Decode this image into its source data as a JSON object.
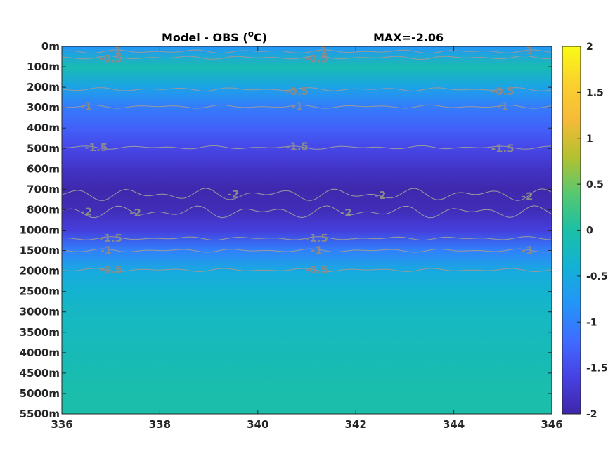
{
  "chart_data": {
    "type": "heatmap",
    "title_left": "Model - OBS (",
    "title_unit_sup": "o",
    "title_unit_after": "C)",
    "title_right": "MAX=-2.06",
    "x_ticks": [
      "336",
      "338",
      "340",
      "342",
      "344",
      "346"
    ],
    "xlim": [
      336,
      346
    ],
    "y_ticks": [
      "0m",
      "100m",
      "200m",
      "300m",
      "400m",
      "500m",
      "600m",
      "700m",
      "800m",
      "1000m",
      "1500m",
      "2000m",
      "2500m",
      "3000m",
      "3500m",
      "4000m",
      "4500m",
      "5000m",
      "5500m"
    ],
    "colorbar": {
      "ticks": [
        "2",
        "1.5",
        "1",
        "0.5",
        "0",
        "-0.5",
        "-1",
        "-1.5",
        "-2"
      ],
      "range": [
        -2,
        2
      ],
      "colormap": [
        "#3e26a8",
        "#4741e3",
        "#3f6cff",
        "#2395f8",
        "#13b1d6",
        "#1bc0a5",
        "#57c86f",
        "#b4c12f",
        "#f6ba39",
        "#fad12e",
        "#f9fb14"
      ]
    },
    "depth_profile": [
      {
        "depth": "0m",
        "value": -0.8
      },
      {
        "depth": "100m",
        "value": -0.1
      },
      {
        "depth": "200m",
        "value": -0.6
      },
      {
        "depth": "300m",
        "value": -1.05
      },
      {
        "depth": "400m",
        "value": -1.3
      },
      {
        "depth": "500m",
        "value": -1.55
      },
      {
        "depth": "600m",
        "value": -1.8
      },
      {
        "depth": "700m",
        "value": -1.97
      },
      {
        "depth": "800m",
        "value": -1.9
      },
      {
        "depth": "1000m",
        "value": -1.65
      },
      {
        "depth": "1500m",
        "value": -1.0
      },
      {
        "depth": "2000m",
        "value": -0.5
      },
      {
        "depth": "2500m",
        "value": -0.35
      },
      {
        "depth": "3000m",
        "value": -0.25
      },
      {
        "depth": "3500m",
        "value": -0.2
      },
      {
        "depth": "4000m",
        "value": -0.15
      },
      {
        "depth": "4500m",
        "value": -0.1
      },
      {
        "depth": "5000m",
        "value": -0.05
      },
      {
        "depth": "5500m",
        "value": -0.05
      }
    ],
    "contour_labels": [
      {
        "text": "-1",
        "x": 337.1,
        "depth_index": 0.2
      },
      {
        "text": "-0.5",
        "x": 337.0,
        "depth_index": 0.6
      },
      {
        "text": "-1",
        "x": 341.3,
        "depth_index": 0.2
      },
      {
        "text": "-0.5",
        "x": 341.2,
        "depth_index": 0.6
      },
      {
        "text": "-1",
        "x": 345.5,
        "depth_index": 0.2
      },
      {
        "text": "-0.5",
        "x": 340.8,
        "depth_index": 2.2
      },
      {
        "text": "-0.5",
        "x": 345.0,
        "depth_index": 2.2
      },
      {
        "text": "-1",
        "x": 336.5,
        "depth_index": 2.95
      },
      {
        "text": "-1",
        "x": 340.8,
        "depth_index": 2.95
      },
      {
        "text": "-1",
        "x": 345.0,
        "depth_index": 2.95
      },
      {
        "text": "-1.5",
        "x": 336.7,
        "depth_index": 4.95
      },
      {
        "text": "-1.5",
        "x": 340.8,
        "depth_index": 4.9
      },
      {
        "text": "-1.5",
        "x": 345.0,
        "depth_index": 5.0
      },
      {
        "text": "-2",
        "x": 339.5,
        "depth_index": 7.25
      },
      {
        "text": "-2",
        "x": 342.5,
        "depth_index": 7.3
      },
      {
        "text": "-2",
        "x": 345.5,
        "depth_index": 7.35
      },
      {
        "text": "-2",
        "x": 336.5,
        "depth_index": 8.1
      },
      {
        "text": "-2",
        "x": 337.5,
        "depth_index": 8.15
      },
      {
        "text": "-2",
        "x": 341.8,
        "depth_index": 8.15
      },
      {
        "text": "-1.5",
        "x": 337.0,
        "depth_index": 9.4
      },
      {
        "text": "-1.5",
        "x": 341.2,
        "depth_index": 9.4
      },
      {
        "text": "-1",
        "x": 336.9,
        "depth_index": 10.0
      },
      {
        "text": "-1",
        "x": 341.2,
        "depth_index": 10.0
      },
      {
        "text": "-1",
        "x": 345.5,
        "depth_index": 10.0
      },
      {
        "text": "-0.5",
        "x": 337.0,
        "depth_index": 10.95
      },
      {
        "text": "-0.5",
        "x": 341.2,
        "depth_index": 10.95
      }
    ],
    "contour_lines": [
      {
        "level": -1,
        "depth_index": 0.25
      },
      {
        "level": -0.5,
        "depth_index": 0.55
      },
      {
        "level": -0.5,
        "depth_index": 2.1
      },
      {
        "level": -1,
        "depth_index": 2.95
      },
      {
        "level": -1.5,
        "depth_index": 4.95
      },
      {
        "level": -2,
        "depth_index": 7.25
      },
      {
        "level": -2,
        "depth_index": 8.1
      },
      {
        "level": -1.5,
        "depth_index": 9.4
      },
      {
        "level": -1,
        "depth_index": 10.0
      },
      {
        "level": -0.5,
        "depth_index": 10.95
      }
    ]
  }
}
